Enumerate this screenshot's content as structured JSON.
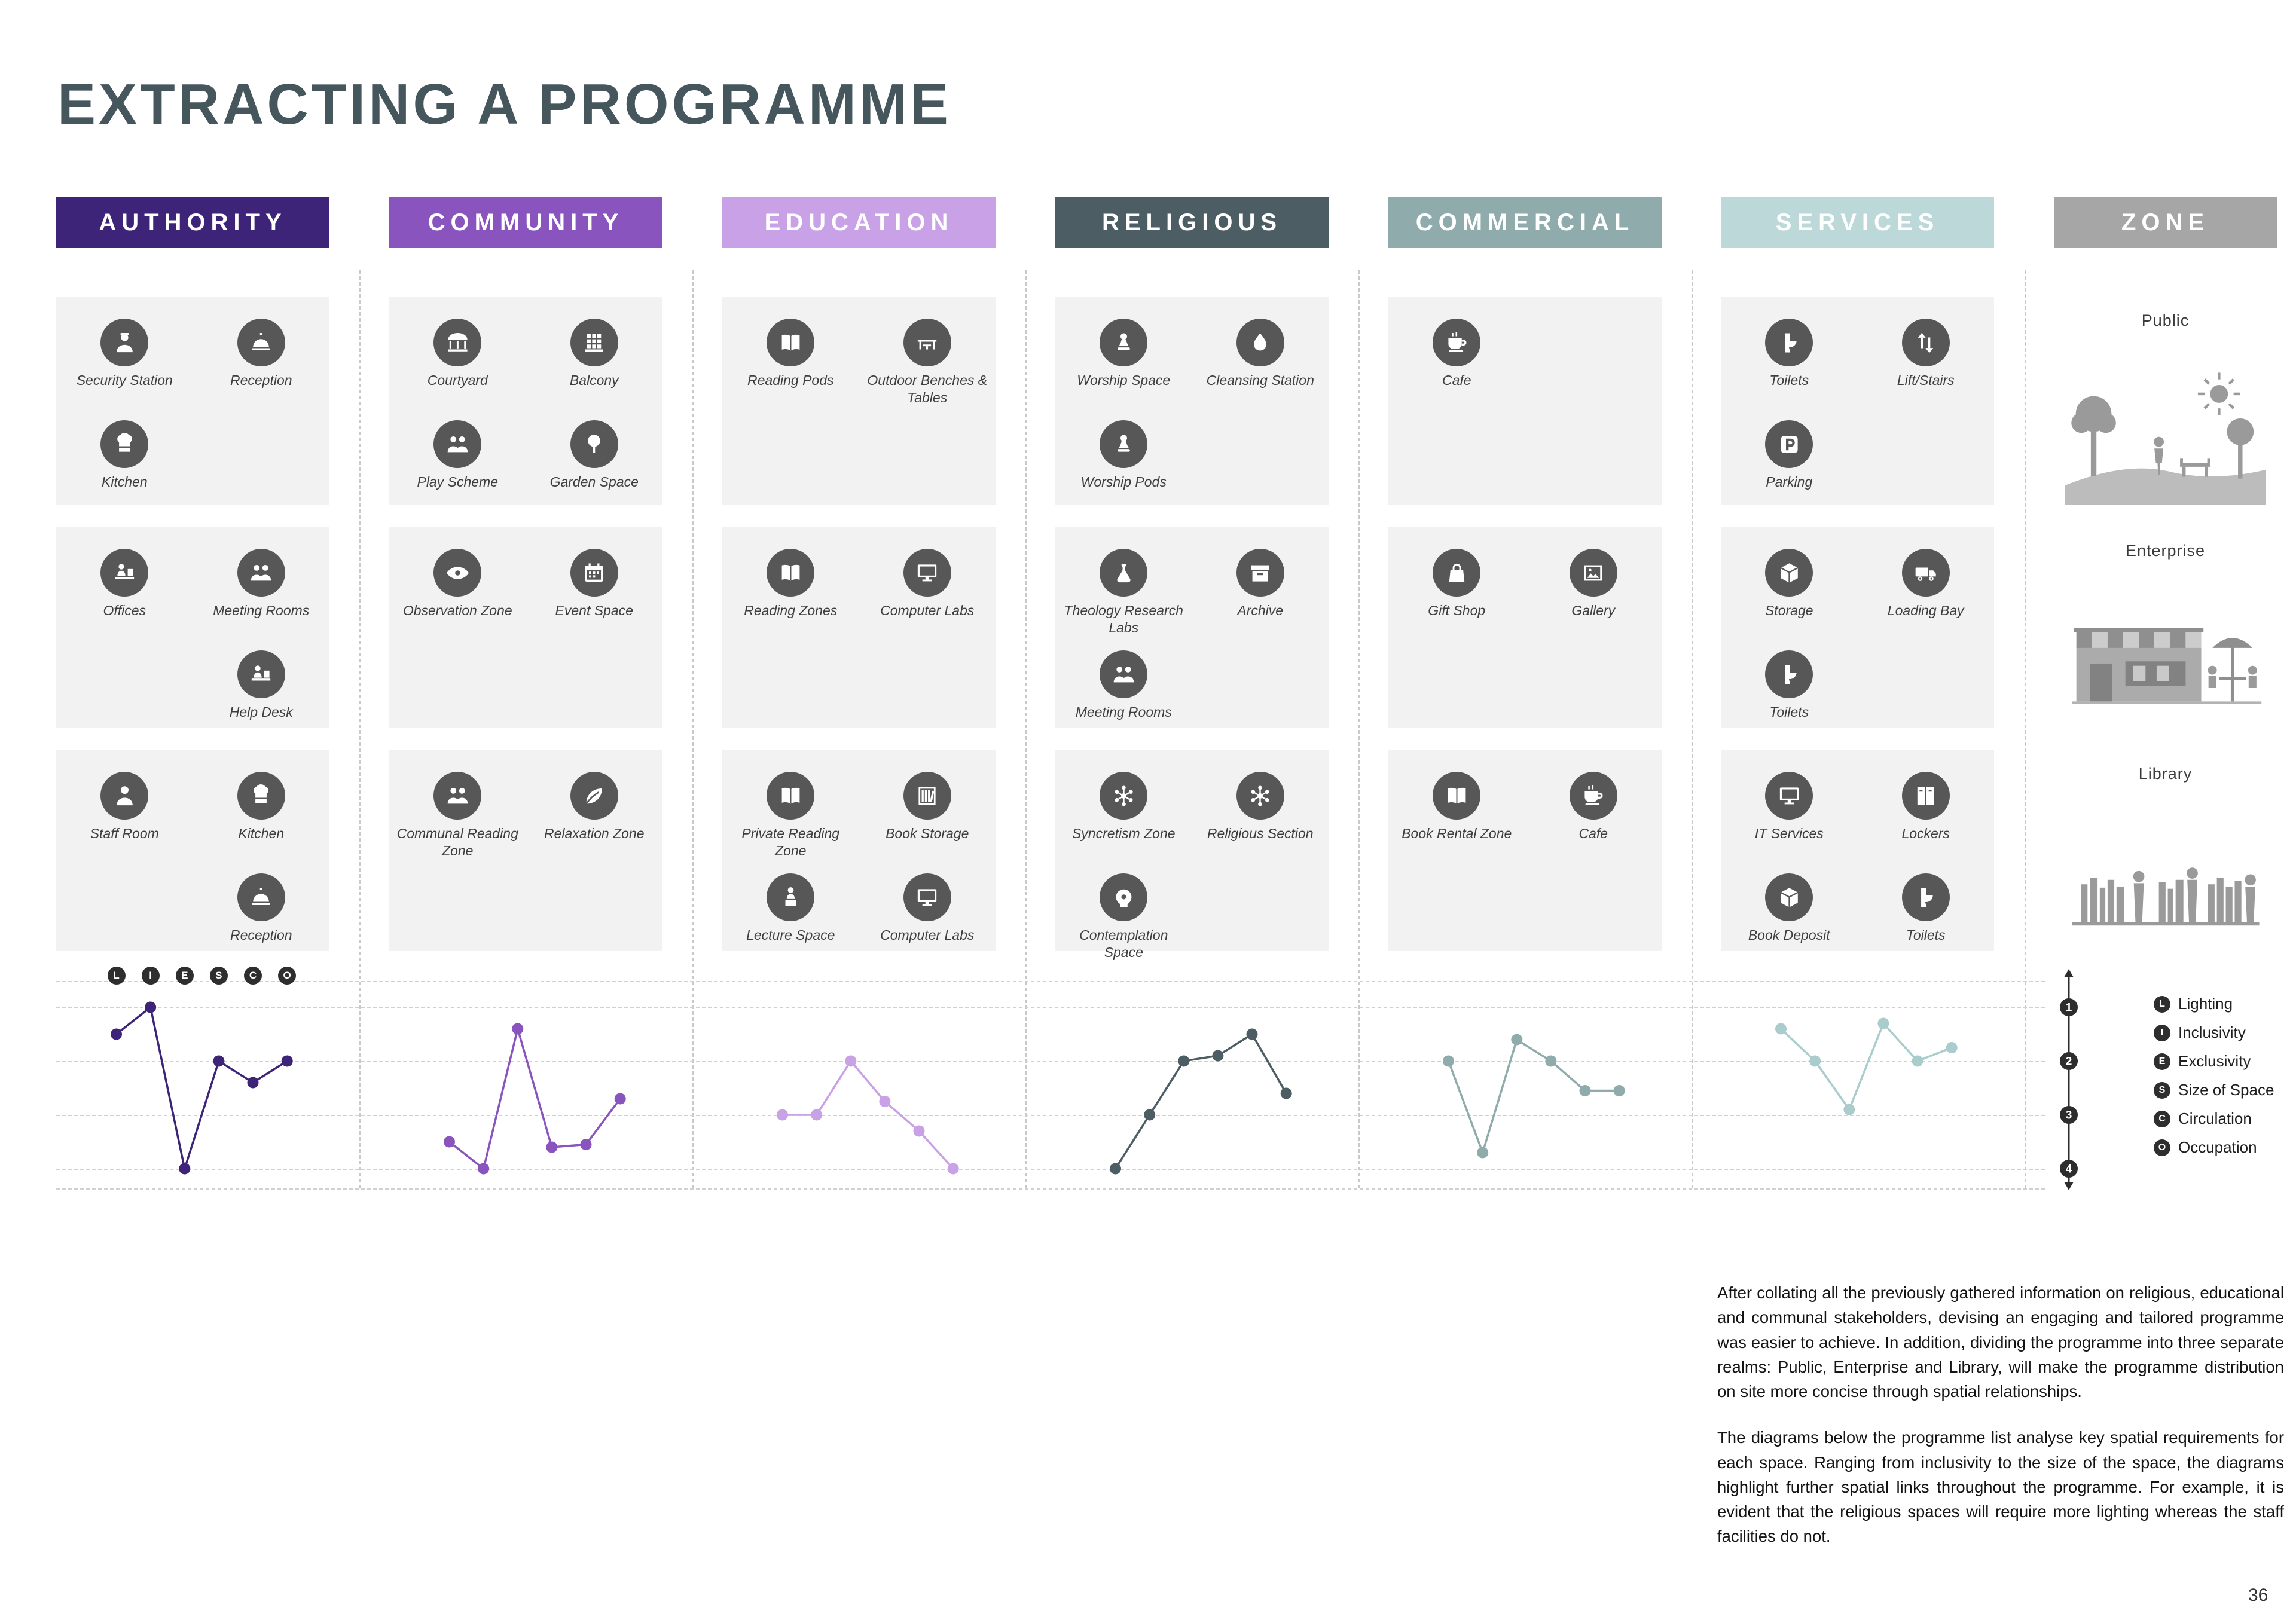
{
  "title": "EXTRACTING A PROGRAMME",
  "page_number": "36",
  "paragraphs": [
    "After collating all the previously gathered information on religious, educational and communal stakeholders, devising an engaging and tailored programme was easier to achieve. In addition, dividing the programme into three separate realms: Public, Enterprise and Library, will make the programme distribution on site more concise through spatial relationships.",
    "The diagrams below the programme list analyse key spatial requirements for each space. Ranging from inclusivity to the size of the space, the diagrams highlight further spatial links throughout the programme. For example, it is evident that the religious spaces will require more lighting whereas the staff facilities  do not."
  ],
  "legend": {
    "scale": [
      "1",
      "2",
      "3",
      "4"
    ],
    "items": [
      {
        "letter": "L",
        "label": "Lighting"
      },
      {
        "letter": "I",
        "label": "Inclusivity"
      },
      {
        "letter": "E",
        "label": "Exclusivity"
      },
      {
        "letter": "S",
        "label": "Size of Space"
      },
      {
        "letter": "C",
        "label": "Circulation"
      },
      {
        "letter": "O",
        "label": "Occupation"
      }
    ]
  },
  "columns": [
    {
      "name": "AUTHORITY",
      "color": "#3d2478",
      "bands": [
        [
          {
            "label": "Security Station",
            "icon": "security-guard"
          },
          {
            "label": "Reception",
            "icon": "reception-bell"
          },
          {
            "label": "Kitchen",
            "icon": "chef-hat"
          }
        ],
        [
          {
            "label": "Offices",
            "icon": "office-desk"
          },
          {
            "label": "Meeting Rooms",
            "icon": "meeting-people"
          },
          null,
          {
            "label": "Help Desk",
            "icon": "help-desk"
          }
        ],
        [
          {
            "label": "Staff Room",
            "icon": "staff-person"
          },
          {
            "label": "Kitchen",
            "icon": "chef-hat"
          },
          null,
          {
            "label": "Reception",
            "icon": "reception-bell"
          }
        ]
      ]
    },
    {
      "name": "COMMUNITY",
      "color": "#8a54be",
      "bands": [
        [
          {
            "label": "Courtyard",
            "icon": "carousel"
          },
          {
            "label": "Balcony",
            "icon": "balcony-building"
          },
          {
            "label": "Play Scheme",
            "icon": "play-children"
          },
          {
            "label": "Garden Space",
            "icon": "garden-tree"
          }
        ],
        [
          {
            "label": "Observation Zone",
            "icon": "observation-eye"
          },
          {
            "label": "Event Space",
            "icon": "event-calendar"
          }
        ],
        [
          {
            "label": "Communal Reading Zone",
            "icon": "communal-people"
          },
          {
            "label": "Relaxation Zone",
            "icon": "relaxation-leaf"
          }
        ]
      ]
    },
    {
      "name": "EDUCATION",
      "color": "#c9a1e6",
      "bands": [
        [
          {
            "label": "Reading Pods",
            "icon": "reading-book"
          },
          {
            "label": "Outdoor Benches & Tables",
            "icon": "bench-table"
          }
        ],
        [
          {
            "label": "Reading  Zones",
            "icon": "reading-book"
          },
          {
            "label": "Computer Labs",
            "icon": "computer-monitor"
          }
        ],
        [
          {
            "label": "Private Reading Zone",
            "icon": "reading-book"
          },
          {
            "label": "Book Storage",
            "icon": "book-shelf"
          },
          {
            "label": "Lecture Space",
            "icon": "lecturer-podium"
          },
          {
            "label": "Computer Labs",
            "icon": "computer-monitor"
          }
        ]
      ]
    },
    {
      "name": "RELIGIOUS",
      "color": "#4c5d63",
      "bands": [
        [
          {
            "label": "Worship Space",
            "icon": "worship-figure"
          },
          {
            "label": "Cleansing Station",
            "icon": "water-drop"
          },
          {
            "label": "Worship Pods",
            "icon": "worship-figure"
          }
        ],
        [
          {
            "label": "Theology Research Labs",
            "icon": "research-flask"
          },
          {
            "label": "Archive",
            "icon": "archive-box"
          },
          {
            "label": "Meeting Rooms",
            "icon": "meeting-people"
          }
        ],
        [
          {
            "label": "Syncretism Zone",
            "icon": "network-nodes"
          },
          {
            "label": "Religious Section",
            "icon": "network-nodes"
          },
          {
            "label": "Contemplation Space",
            "icon": "mind-head"
          }
        ]
      ]
    },
    {
      "name": "COMMERCIAL",
      "color": "#8fabab",
      "bands": [
        [
          {
            "label": "Cafe",
            "icon": "coffee-cup"
          }
        ],
        [
          {
            "label": "Gift Shop",
            "icon": "shopping-bag"
          },
          {
            "label": "Gallery",
            "icon": "picture-frame"
          }
        ],
        [
          {
            "label": "Book Rental Zone",
            "icon": "reading-book"
          },
          {
            "label": "Cafe",
            "icon": "coffee-cup"
          }
        ]
      ]
    },
    {
      "name": "SERVICES",
      "color": "#bdd8d8",
      "bands": [
        [
          {
            "label": "Toilets",
            "icon": "toilet"
          },
          {
            "label": "Lift/Stairs",
            "icon": "lift-arrows"
          },
          {
            "label": "Parking",
            "icon": "parking-sign"
          }
        ],
        [
          {
            "label": "Storage",
            "icon": "storage-cube"
          },
          {
            "label": "Loading Bay",
            "icon": "loading-truck"
          },
          {
            "label": "Toilets",
            "icon": "toilet"
          }
        ],
        [
          {
            "label": "IT Services",
            "icon": "computer-monitor"
          },
          {
            "label": "Lockers",
            "icon": "locker"
          },
          {
            "label": "Book Deposit",
            "icon": "storage-cube"
          },
          {
            "label": "Toilets",
            "icon": "toilet"
          }
        ]
      ]
    }
  ],
  "zone": {
    "name": "ZONE",
    "color": "#a6a6a6",
    "bands": [
      {
        "label": "Public",
        "art": "public"
      },
      {
        "label": "Enterprise",
        "art": "enterprise"
      },
      {
        "label": "Library",
        "art": "library"
      }
    ]
  },
  "chart_data": {
    "type": "line",
    "categories": [
      "L",
      "I",
      "E",
      "S",
      "C",
      "O"
    ],
    "axis": {
      "min": 1,
      "max": 4,
      "inverted": true,
      "ticks": [
        1,
        2,
        3,
        4
      ]
    },
    "legend_position": "right",
    "grid": true,
    "series": [
      {
        "name": "Authority",
        "color": "#3d2478",
        "values": [
          1.5,
          1.0,
          4.0,
          2.0,
          2.4,
          2.0
        ]
      },
      {
        "name": "Community",
        "color": "#8a54be",
        "values": [
          3.5,
          4.0,
          1.4,
          3.6,
          3.55,
          2.7
        ]
      },
      {
        "name": "Education",
        "color": "#c9a1e6",
        "values": [
          3.0,
          3.0,
          2.0,
          2.75,
          3.3,
          4.0
        ]
      },
      {
        "name": "Religious",
        "color": "#4c5d63",
        "values": [
          4.0,
          3.0,
          2.0,
          1.9,
          1.5,
          2.6
        ]
      },
      {
        "name": "Commercial",
        "color": "#8fabab",
        "values": [
          2.0,
          3.7,
          1.6,
          2.0,
          2.55,
          2.55
        ]
      },
      {
        "name": "Services",
        "color": "#aacccc",
        "values": [
          1.4,
          2.0,
          2.9,
          1.3,
          2.0,
          1.75
        ]
      }
    ]
  }
}
